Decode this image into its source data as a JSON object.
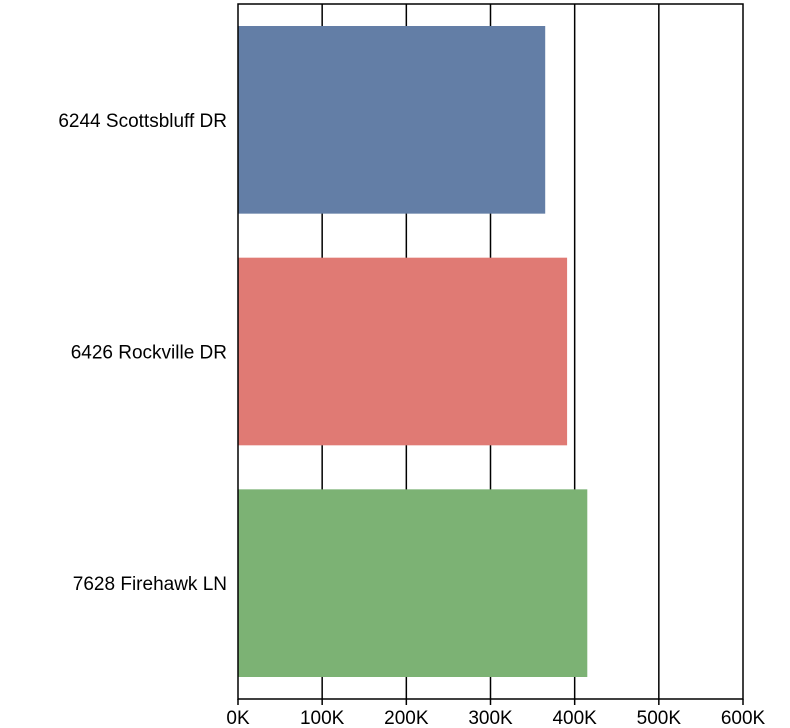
{
  "chart_data": {
    "type": "bar",
    "orientation": "horizontal",
    "categories": [
      "6244 Scottsbluff DR",
      "6426 Rockville DR",
      "7628 Firehawk LN"
    ],
    "values": [
      365000,
      391000,
      415000
    ],
    "colors": [
      "#637ea6",
      "#e07a74",
      "#7cb274"
    ],
    "xlim": [
      0,
      600000
    ],
    "xticks": [
      0,
      100000,
      200000,
      300000,
      400000,
      500000,
      600000
    ],
    "xtick_labels": [
      "0K",
      "100K",
      "200K",
      "300K",
      "400K",
      "500K",
      "600K"
    ],
    "title": "",
    "xlabel": "",
    "ylabel": "",
    "grid": true,
    "legend": "none"
  }
}
